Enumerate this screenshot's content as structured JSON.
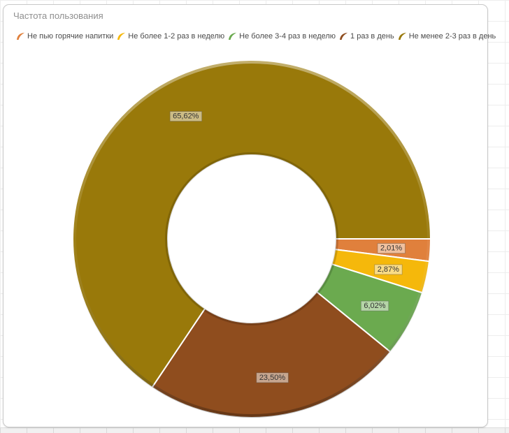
{
  "panel": {
    "title": "Частота пользования"
  },
  "chart_data": {
    "type": "pie",
    "subtype": "donut",
    "title": "Частота пользования",
    "legend_position": "top-left",
    "start_angle_deg": 0,
    "direction": "clockwise",
    "values_sum_pct": 100.02,
    "slices": [
      {
        "label": "Не пью горячие напитки",
        "value_pct": 2.01,
        "display": "2,01%",
        "color": "#E0803C"
      },
      {
        "label": "Не более 1-2 раз в неделю",
        "value_pct": 2.87,
        "display": "2,87%",
        "color": "#F5B80B"
      },
      {
        "label": "Не более 3-4 раз в неделю",
        "value_pct": 6.02,
        "display": "6,02%",
        "color": "#6BAA4F"
      },
      {
        "label": "1 раз в день",
        "value_pct": 23.5,
        "display": "23,50%",
        "color": "#8F4D1E"
      },
      {
        "label": "Не менее 2-3 раз в день",
        "value_pct": 65.62,
        "display": "65,62%",
        "color": "#99790A"
      }
    ],
    "label_style": {
      "box_fill": "rgba(255,255,255,0.5)",
      "box_border": "rgba(85,85,85,0.45)",
      "text_color": "#333333"
    }
  }
}
